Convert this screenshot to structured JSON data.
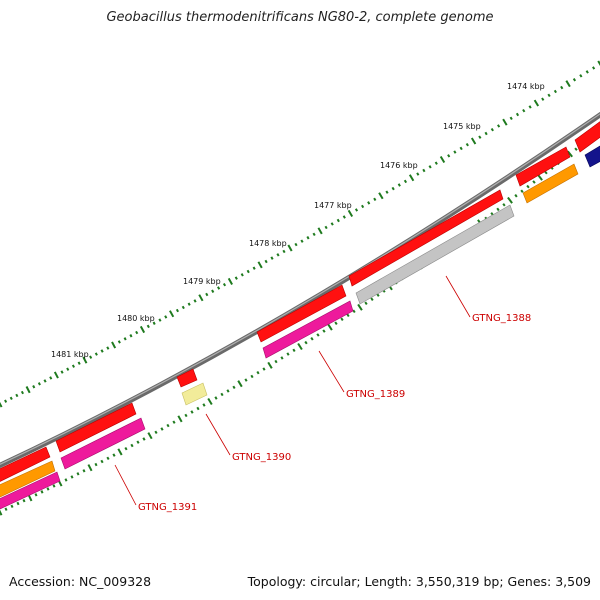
{
  "title": "Geobacillus thermodenitrificans NG80-2, complete genome",
  "footer": {
    "accession": "Accession: NC_009328",
    "summary": "Topology: circular; Length: 3,550,319 bp; Genes: 3,509"
  },
  "colors": {
    "backbone": "#7a7a7a",
    "tick": "#1e7a1e",
    "label": "#cc0000",
    "gene_red": "#ff1010",
    "gene_magenta": "#ee1a9c",
    "gene_grey": "#c4c4c4",
    "gene_orange": "#ff9900",
    "gene_yellow": "#f2ec9a",
    "gene_navy": "#14148c"
  },
  "scale": {
    "ticks": [
      {
        "label": "1474 kbp",
        "kbp": 1474
      },
      {
        "label": "1475 kbp",
        "kbp": 1475
      },
      {
        "label": "1476 kbp",
        "kbp": 1476
      },
      {
        "label": "1477 kbp",
        "kbp": 1477
      },
      {
        "label": "1478 kbp",
        "kbp": 1478
      },
      {
        "label": "1479 kbp",
        "kbp": 1479
      },
      {
        "label": "1480 kbp",
        "kbp": 1480
      },
      {
        "label": "1481 kbp",
        "kbp": 1481
      }
    ]
  },
  "gene_labels": [
    "GTNG_1388",
    "GTNG_1389",
    "GTNG_1390",
    "GTNG_1391"
  ]
}
